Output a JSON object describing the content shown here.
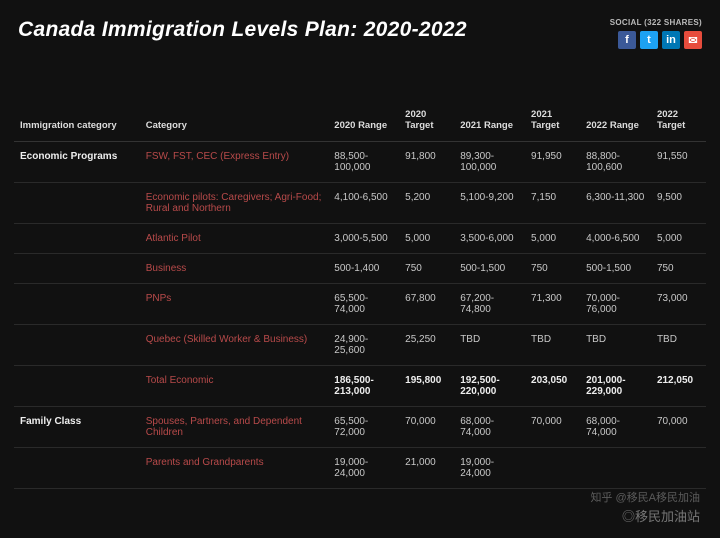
{
  "title": "Canada Immigration Levels Plan: 2020-2022",
  "social": {
    "label": "SOCIAL (322 SHARES)",
    "icons": {
      "fb": "f",
      "tw": "t",
      "li": "in",
      "em": "✉"
    }
  },
  "columns": [
    "Immigration category",
    "Category",
    "2020 Range",
    "2020 Target",
    "2021 Range",
    "2021 Target",
    "2022 Range",
    "2022 Target"
  ],
  "groups": [
    {
      "name": "Economic Programs",
      "rows": [
        {
          "cat": "FSW, FST, CEC (Express Entry)",
          "r20": "88,500-100,000",
          "t20": "91,800",
          "r21": "89,300-100,000",
          "t21": "91,950",
          "r22": "88,800-100,600",
          "t22": "91,550"
        },
        {
          "cat": "Economic pilots: Caregivers; Agri-Food; Rural and Northern",
          "r20": "4,100-6,500",
          "t20": "5,200",
          "r21": "5,100-9,200",
          "t21": "7,150",
          "r22": "6,300-11,300",
          "t22": "9,500"
        },
        {
          "cat": "Atlantic Pilot",
          "r20": "3,000-5,500",
          "t20": "5,000",
          "r21": "3,500-6,000",
          "t21": "5,000",
          "r22": "4,000-6,500",
          "t22": "5,000"
        },
        {
          "cat": "Business",
          "r20": "500-1,400",
          "t20": "750",
          "r21": "500-1,500",
          "t21": "750",
          "r22": "500-1,500",
          "t22": "750"
        },
        {
          "cat": "PNPs",
          "r20": "65,500-74,000",
          "t20": "67,800",
          "r21": "67,200-74,800",
          "t21": "71,300",
          "r22": "70,000-76,000",
          "t22": "73,000"
        },
        {
          "cat": "Quebec (Skilled Worker & Business)",
          "r20": "24,900-25,600",
          "t20": "25,250",
          "r21": "TBD",
          "t21": "TBD",
          "r22": "TBD",
          "t22": "TBD"
        },
        {
          "cat": "Total Economic",
          "bold": true,
          "r20": "186,500-213,000",
          "t20": "195,800",
          "r21": "192,500-220,000",
          "t21": "203,050",
          "r22": "201,000-229,000",
          "t22": "212,050"
        }
      ]
    },
    {
      "name": "Family Class",
      "rows": [
        {
          "cat": "Spouses, Partners, and Dependent Children",
          "r20": "65,500-72,000",
          "t20": "70,000",
          "r21": "68,000-74,000",
          "t21": "70,000",
          "r22": "68,000-74,000",
          "t22": "70,000"
        },
        {
          "cat": "Parents and Grandparents",
          "r20": "19,000-24,000",
          "t20": "21,000",
          "r21": "19,000-24,000",
          "t21": "",
          "r22": "",
          "t22": ""
        }
      ]
    }
  ],
  "watermark": {
    "line1": "知乎 @移民A移民加油",
    "line2": "◎移民加油站"
  },
  "colors": {
    "bg": "#111111",
    "text": "#cccccc",
    "accent": "#b84a4a",
    "border": "#2a2a2a"
  }
}
